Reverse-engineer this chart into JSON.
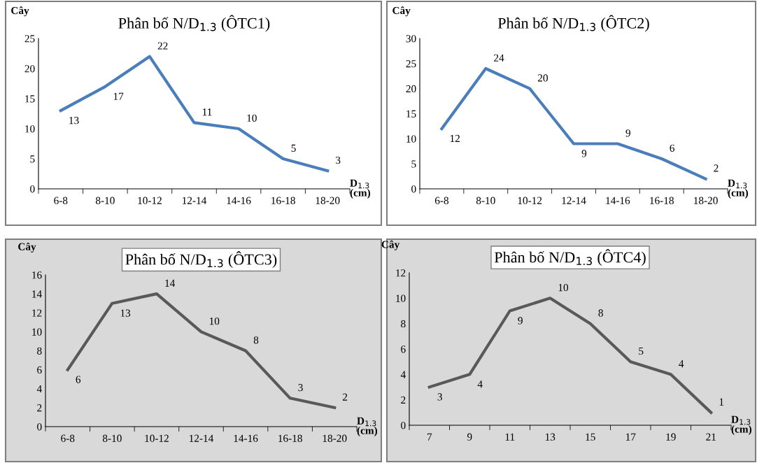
{
  "chart_data": [
    {
      "type": "line",
      "title": "Phân bố N/D$_{1.3}$ (ÔTC1)",
      "ylabel": "Cây",
      "xlabel": "D$_{1.3}$\n(cm)",
      "categories": [
        "6-8",
        "8-10",
        "10-12",
        "12-14",
        "14-16",
        "16-18",
        "18-20"
      ],
      "series": [
        {
          "color": "#4a7ebb",
          "values": [
            13,
            17,
            22,
            11,
            10,
            5,
            3
          ]
        }
      ],
      "ylim": [
        0,
        25
      ],
      "yticks": [
        0,
        5,
        10,
        15,
        20,
        25
      ],
      "data_labels": true,
      "grid": false,
      "marker": "none"
    },
    {
      "type": "line",
      "title": "Phân bố N/D$_{1.3}$ (ÔTC2)",
      "ylabel": "Cây",
      "xlabel": "D$_{1.3}$\n(cm)",
      "categories": [
        "6-8",
        "8-10",
        "10-12",
        "12-14",
        "14-16",
        "16-18",
        "18-20"
      ],
      "series": [
        {
          "color": "#4a7ebb",
          "values": [
            12,
            24,
            20,
            9,
            9,
            6,
            2
          ]
        }
      ],
      "ylim": [
        0,
        30
      ],
      "yticks": [
        0,
        5,
        10,
        15,
        20,
        25,
        30
      ],
      "data_labels": true,
      "grid": false,
      "marker": "none"
    },
    {
      "type": "line",
      "title": "Phân bố N/D$_{1.3}$ (ÔTC3)",
      "ylabel": "Cây",
      "xlabel": "D$_{1.3}$\n(cm)",
      "categories": [
        "6-8",
        "8-10",
        "10-12",
        "12-14",
        "14-16",
        "16-18",
        "18-20"
      ],
      "series": [
        {
          "color": "#595959",
          "values": [
            6,
            13,
            14,
            10,
            8,
            3,
            2
          ]
        }
      ],
      "ylim": [
        0,
        16
      ],
      "yticks": [
        0,
        2,
        4,
        6,
        8,
        10,
        12,
        14,
        16
      ],
      "data_labels": true,
      "grid": false,
      "marker": "none"
    },
    {
      "type": "line",
      "title": "Phân bố N/D$_{1.3}$ (ÔTC4)",
      "ylabel": "Cây",
      "xlabel": "D$_{1.3}$\n(cm)",
      "categories": [
        "7",
        "9",
        "11",
        "13",
        "15",
        "17",
        "19",
        "21"
      ],
      "series": [
        {
          "color": "#595959",
          "values": [
            3,
            4,
            9,
            10,
            8,
            5,
            4,
            1
          ]
        }
      ],
      "ylim": [
        0,
        12
      ],
      "yticks": [
        0,
        2,
        4,
        6,
        8,
        10,
        12
      ],
      "data_labels": true,
      "grid": false,
      "marker": "none"
    }
  ]
}
